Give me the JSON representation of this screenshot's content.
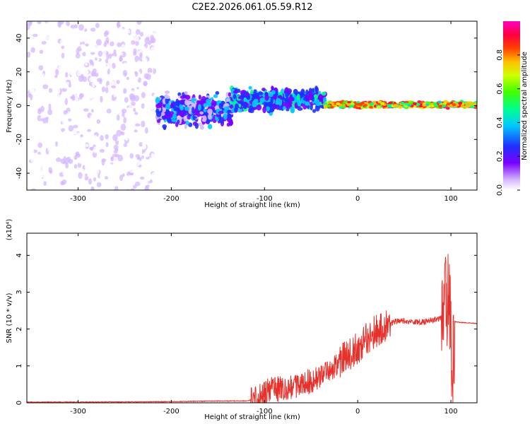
{
  "title": "C2E2.2026.061.05.59.R12",
  "chart_data": [
    {
      "type": "heatmap",
      "xlabel": "Height of straight line (km)",
      "ylabel": "Frequency (Hz)",
      "xlim": [
        -355,
        128
      ],
      "ylim": [
        -50,
        50
      ],
      "xticks": [
        -300,
        -200,
        -100,
        0,
        100
      ],
      "yticks": [
        -40,
        -20,
        0,
        20,
        40
      ],
      "colorbar": {
        "label": "Normalized spectral amplitude",
        "range": [
          0.0,
          1.0
        ],
        "ticks": [
          "0.0",
          "0.2",
          "0.4",
          "0.6",
          "0.8"
        ],
        "colormap": "rainbow"
      },
      "regions": [
        {
          "x_range": [
            -355,
            -215
          ],
          "freq_range": [
            -50,
            50
          ],
          "amplitude": [
            0.0,
            0.1
          ],
          "note": "scattered noise"
        },
        {
          "x_range": [
            -215,
            -135
          ],
          "freq_range": [
            -15,
            10
          ],
          "amplitude": [
            0.1,
            0.45
          ]
        },
        {
          "x_range": [
            -135,
            -35
          ],
          "freq_range": [
            -5,
            12
          ],
          "amplitude": [
            0.2,
            0.55
          ]
        },
        {
          "x_range": [
            -35,
            128
          ],
          "freq_range": [
            -2,
            3
          ],
          "amplitude": [
            0.4,
            1.0
          ]
        }
      ]
    },
    {
      "type": "line",
      "xlabel": "Height of straight line (km)",
      "ylabel": "SNR (10 * v/v)",
      "y_scale_label": "(x10⁴)",
      "xlim": [
        -355,
        128
      ],
      "ylim": [
        0,
        4.6
      ],
      "xticks": [
        -300,
        -200,
        -100,
        0,
        100
      ],
      "yticks": [
        0,
        1,
        2,
        3,
        4
      ],
      "series": [
        {
          "color": "#e8302a",
          "x": [
            -355,
            -300,
            -200,
            -150,
            -120,
            -110,
            -100,
            -90,
            -80,
            -70,
            -60,
            -50,
            -40,
            -30,
            -20,
            -10,
            0,
            10,
            20,
            30,
            40,
            50,
            60,
            70,
            80,
            90,
            95,
            100,
            102,
            104,
            110,
            128
          ],
          "y": [
            0.02,
            0.02,
            0.03,
            0.05,
            0.05,
            0.1,
            0.3,
            0.4,
            0.35,
            0.4,
            0.5,
            0.6,
            0.75,
            0.9,
            1.1,
            1.3,
            1.5,
            1.75,
            1.95,
            2.1,
            2.2,
            2.22,
            2.2,
            2.2,
            2.25,
            2.3,
            2.4,
            2.5,
            0.5,
            2.2,
            2.18,
            2.15
          ]
        }
      ]
    }
  ]
}
